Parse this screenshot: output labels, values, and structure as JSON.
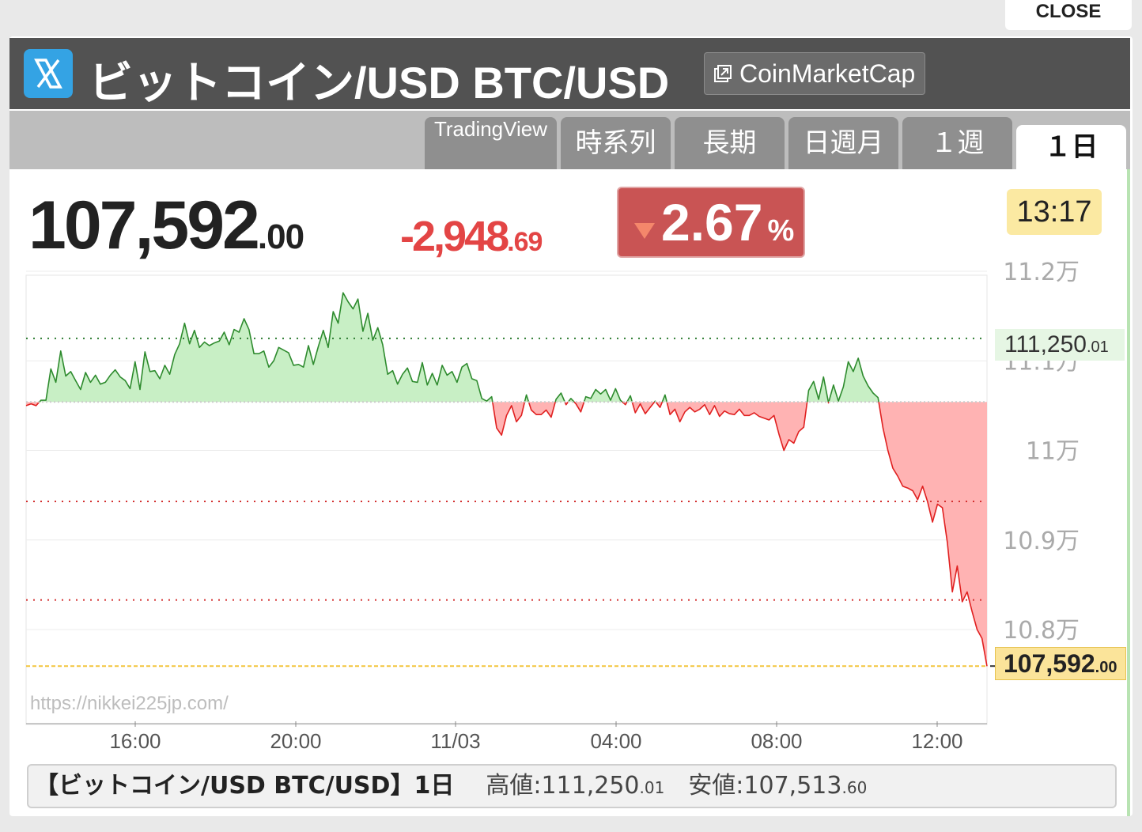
{
  "close_label": "CLOSE",
  "header": {
    "title": "ビットコイン/USD BTC/USD",
    "source_label": "CoinMarketCap"
  },
  "tabs": [
    {
      "label": "TradingView"
    },
    {
      "label": "時系列"
    },
    {
      "label": "長期"
    },
    {
      "label": "日週月"
    },
    {
      "label": "１週"
    },
    {
      "label": "１日"
    }
  ],
  "active_tab": "１日",
  "quote": {
    "price_int": "107,592",
    "price_dec": ".00",
    "change_int": "-2,948",
    "change_dec": ".69",
    "change_pct": "2.67",
    "pct_unit": "%",
    "time": "13:17"
  },
  "axis": {
    "y_ticks": [
      "11.2万",
      "11.1万",
      "11万",
      "10.9万",
      "10.8万"
    ],
    "x_ticks": [
      "16:00",
      "20:00",
      "11/03",
      "04:00",
      "08:00",
      "12:00"
    ]
  },
  "markers": {
    "high_int": "111,250",
    "high_dec": ".01",
    "current_int": "107,592",
    "current_dec": ".00"
  },
  "watermark": "https://nikkei225jp.com/",
  "footer": {
    "title": "【ビットコイン/USD BTC/USD】1日",
    "high_label": "高値:",
    "high_int": "111,250",
    "high_dec": ".01",
    "low_label": "安値:",
    "low_int": "107,513",
    "low_dec": ".60"
  },
  "colors": {
    "up": "#2e8b2e",
    "up_fill": "#c8efc5",
    "down": "#e02020",
    "down_fill": "#ffb3b3",
    "badge_down": "#c95454",
    "twitter_blue": "#34a3e4"
  },
  "chart_data": {
    "type": "area",
    "title": "",
    "x_label": "",
    "y_label": "",
    "x_ticks": [
      "16:00",
      "20:00",
      "11/03",
      "04:00",
      "08:00",
      "12:00"
    ],
    "y_ticks": [
      112000,
      111000,
      110000,
      109000,
      108000
    ],
    "ylim": [
      107400,
      112300
    ],
    "baseline": 110541,
    "reference_lines": [
      111250.01,
      110541,
      109430,
      108330,
      107592
    ],
    "series": [
      {
        "values": [
          110500,
          110520,
          110500,
          110560,
          110560,
          110910,
          110760,
          111110,
          110830,
          110880,
          110780,
          110680,
          110870,
          110760,
          110840,
          110740,
          110760,
          110840,
          110900,
          110820,
          110780,
          110690,
          110990,
          110680,
          111100,
          110880,
          110890,
          110800,
          110950,
          110850,
          111070,
          111190,
          111420,
          111190,
          111340,
          111150,
          111210,
          111170,
          111200,
          111220,
          111320,
          111180,
          111350,
          111320,
          111470,
          111350,
          111080,
          111080,
          111110,
          110930,
          111000,
          111150,
          111120,
          111090,
          110950,
          110960,
          110930,
          111170,
          110960,
          111160,
          111340,
          111150,
          111550,
          111420,
          111760,
          111660,
          111580,
          111690,
          111330,
          111530,
          111230,
          111370,
          111180,
          110850,
          110890,
          110740,
          110850,
          110920,
          110770,
          110760,
          110980,
          110730,
          110860,
          110730,
          110950,
          110840,
          110880,
          110760,
          110930,
          110970,
          110800,
          110780,
          110580,
          110550,
          110600,
          110250,
          110170,
          110390,
          110500,
          110320,
          110390,
          110620,
          110450,
          110400,
          110400,
          110450,
          110370,
          110570,
          110640,
          110510,
          110580,
          110520,
          110430,
          110600,
          110580,
          110680,
          110630,
          110680,
          110560,
          110690,
          110560,
          110510,
          110610,
          110420,
          110520,
          110410,
          110480,
          110550,
          110480,
          110620,
          110400,
          110460,
          110320,
          110430,
          110480,
          110430,
          110460,
          110510,
          110400,
          110500,
          110380,
          110440,
          110410,
          110400,
          110460,
          110390,
          110390,
          110420,
          110380,
          110360,
          110340,
          110390,
          110180,
          110000,
          110120,
          110080,
          110210,
          110260,
          110670,
          110770,
          110570,
          110820,
          110530,
          110730,
          110550,
          110710,
          110990,
          110880,
          111030,
          110830,
          110720,
          110640,
          110590,
          110250,
          110000,
          109800,
          109710,
          109600,
          109580,
          109550,
          109450,
          109600,
          109430,
          109200,
          109400,
          109360,
          108970,
          108420,
          108710,
          108310,
          108420,
          108200,
          108000,
          107900,
          107590
        ]
      }
    ]
  }
}
